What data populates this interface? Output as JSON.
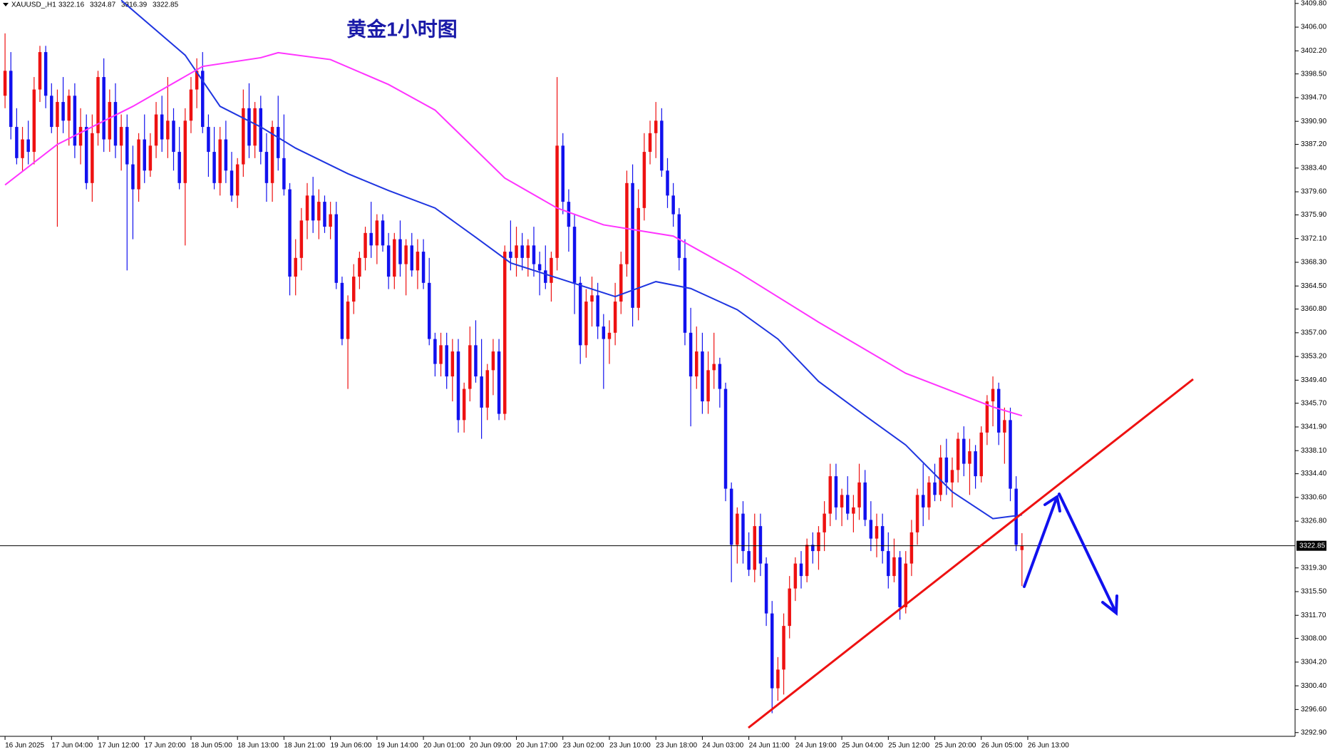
{
  "header": {
    "symbol": "XAUUSD_,H1",
    "values": [
      "3322.16",
      "3324.87",
      "3316.39",
      "3322.85"
    ]
  },
  "chart_data": {
    "type": "candlestick",
    "title": "黄金1小时图",
    "up_color": "#ee1111",
    "down_color": "#1111ee",
    "xlim": [
      -0.5,
      222
    ],
    "ylim": [
      3292.3,
      3410.35
    ],
    "xticks": [
      {
        "value": 0,
        "label": "16 Jun 2025"
      },
      {
        "value": 8,
        "label": "17 Jun 04:00"
      },
      {
        "value": 16,
        "label": "17 Jun 12:00"
      },
      {
        "value": 24,
        "label": "17 Jun 20:00"
      },
      {
        "value": 32,
        "label": "18 Jun 05:00"
      },
      {
        "value": 40,
        "label": "18 Jun 13:00"
      },
      {
        "value": 48,
        "label": "18 Jun 21:00"
      },
      {
        "value": 56,
        "label": "19 Jun 06:00"
      },
      {
        "value": 64,
        "label": "19 Jun 14:00"
      },
      {
        "value": 72,
        "label": "20 Jun 01:00"
      },
      {
        "value": 80,
        "label": "20 Jun 09:00"
      },
      {
        "value": 88,
        "label": "20 Jun 17:00"
      },
      {
        "value": 96,
        "label": "23 Jun 02:00"
      },
      {
        "value": 104,
        "label": "23 Jun 10:00"
      },
      {
        "value": 112,
        "label": "23 Jun 18:00"
      },
      {
        "value": 120,
        "label": "24 Jun 03:00"
      },
      {
        "value": 128,
        "label": "24 Jun 11:00"
      },
      {
        "value": 136,
        "label": "24 Jun 19:00"
      },
      {
        "value": 144,
        "label": "25 Jun 04:00"
      },
      {
        "value": 152,
        "label": "25 Jun 12:00"
      },
      {
        "value": 160,
        "label": "25 Jun 20:00"
      },
      {
        "value": 168,
        "label": "26 Jun 05:00"
      },
      {
        "value": 176,
        "label": "26 Jun 13:00"
      }
    ],
    "yticks": [
      {
        "value": 3409.8,
        "label": "3409.80"
      },
      {
        "value": 3406,
        "label": "3406.00"
      },
      {
        "value": 3402.2,
        "label": "3402.20"
      },
      {
        "value": 3398.5,
        "label": "3398.50"
      },
      {
        "value": 3394.7,
        "label": "3394.70"
      },
      {
        "value": 3390.9,
        "label": "3390.90"
      },
      {
        "value": 3387.2,
        "label": "3387.20"
      },
      {
        "value": 3383.4,
        "label": "3383.40"
      },
      {
        "value": 3379.6,
        "label": "3379.60"
      },
      {
        "value": 3375.9,
        "label": "3375.90"
      },
      {
        "value": 3372.1,
        "label": "3372.10"
      },
      {
        "value": 3368.3,
        "label": "3368.30"
      },
      {
        "value": 3364.5,
        "label": "3364.50"
      },
      {
        "value": 3360.8,
        "label": "3360.80"
      },
      {
        "value": 3357,
        "label": "3357.00"
      },
      {
        "value": 3353.2,
        "label": "3353.20"
      },
      {
        "value": 3349.4,
        "label": "3349.40"
      },
      {
        "value": 3345.7,
        "label": "3345.70"
      },
      {
        "value": 3341.9,
        "label": "3341.90"
      },
      {
        "value": 3338.1,
        "label": "3338.10"
      },
      {
        "value": 3334.4,
        "label": "3334.40"
      },
      {
        "value": 3330.6,
        "label": "3330.60"
      },
      {
        "value": 3326.8,
        "label": "3326.80"
      },
      {
        "value": 3319.3,
        "label": "3319.30"
      },
      {
        "value": 3315.5,
        "label": "3315.50"
      },
      {
        "value": 3311.7,
        "label": "3311.70"
      },
      {
        "value": 3308,
        "label": "3308.00"
      },
      {
        "value": 3304.2,
        "label": "3304.20"
      },
      {
        "value": 3300.4,
        "label": "3300.40"
      },
      {
        "value": 3296.6,
        "label": "3296.60"
      },
      {
        "value": 3292.9,
        "label": "3292.90"
      }
    ],
    "current_price": {
      "value": 3322.85,
      "label": "3322.85"
    },
    "ohlc": [
      [
        3395,
        3405,
        3393,
        3399
      ],
      [
        3399,
        3402,
        3388,
        3390
      ],
      [
        3390,
        3393,
        3384,
        3385
      ],
      [
        3385,
        3390,
        3383,
        3388
      ],
      [
        3388,
        3391,
        3384,
        3386
      ],
      [
        3386,
        3398,
        3384,
        3396
      ],
      [
        3396,
        3403,
        3394,
        3402
      ],
      [
        3402,
        3403,
        3393,
        3395
      ],
      [
        3395,
        3397,
        3389,
        3390
      ],
      [
        3390,
        3396,
        3374,
        3394
      ],
      [
        3394,
        3398,
        3389,
        3391
      ],
      [
        3391,
        3396,
        3387,
        3395
      ],
      [
        3395,
        3397,
        3385,
        3387
      ],
      [
        3387,
        3393,
        3384,
        3390
      ],
      [
        3390,
        3392,
        3380,
        3381
      ],
      [
        3381,
        3392,
        3378,
        3389
      ],
      [
        3389,
        3399,
        3387,
        3398
      ],
      [
        3398,
        3401,
        3386,
        3388
      ],
      [
        3388,
        3396,
        3386,
        3394
      ],
      [
        3394,
        3397,
        3385,
        3387
      ],
      [
        3387,
        3392,
        3383,
        3390
      ],
      [
        3390,
        3392,
        3367,
        3384
      ],
      [
        3384,
        3387,
        3372,
        3380
      ],
      [
        3380,
        3389,
        3378,
        3388
      ],
      [
        3388,
        3392,
        3381,
        3383
      ],
      [
        3383,
        3389,
        3382,
        3387
      ],
      [
        3387,
        3394,
        3385,
        3392
      ],
      [
        3392,
        3395,
        3386,
        3388
      ],
      [
        3388,
        3398,
        3385,
        3391
      ],
      [
        3391,
        3393,
        3383,
        3386
      ],
      [
        3386,
        3390,
        3380,
        3381
      ],
      [
        3381,
        3393,
        3371,
        3391
      ],
      [
        3391,
        3398,
        3389,
        3396
      ],
      [
        3396,
        3401,
        3393,
        3399
      ],
      [
        3399,
        3402,
        3389,
        3390
      ],
      [
        3390,
        3392,
        3382,
        3386
      ],
      [
        3386,
        3390,
        3380,
        3381
      ],
      [
        3381,
        3390,
        3379,
        3388
      ],
      [
        3388,
        3391,
        3381,
        3383
      ],
      [
        3383,
        3386,
        3378,
        3379
      ],
      [
        3379,
        3385,
        3377,
        3384
      ],
      [
        3384,
        3396,
        3382,
        3393
      ],
      [
        3393,
        3397,
        3385,
        3387
      ],
      [
        3387,
        3394,
        3385,
        3393
      ],
      [
        3393,
        3395,
        3384,
        3386
      ],
      [
        3386,
        3389,
        3378,
        3381
      ],
      [
        3381,
        3391,
        3378,
        3390
      ],
      [
        3390,
        3395,
        3383,
        3385
      ],
      [
        3385,
        3392,
        3379,
        3380
      ],
      [
        3380,
        3381,
        3363,
        3366
      ],
      [
        3366,
        3372,
        3363,
        3369
      ],
      [
        3369,
        3377,
        3367,
        3375
      ],
      [
        3375,
        3381,
        3372,
        3379
      ],
      [
        3379,
        3382,
        3373,
        3375
      ],
      [
        3375,
        3380,
        3372,
        3378
      ],
      [
        3378,
        3379,
        3373,
        3374
      ],
      [
        3374,
        3378,
        3372,
        3376
      ],
      [
        3376,
        3378,
        3364,
        3365
      ],
      [
        3365,
        3366,
        3355,
        3356
      ],
      [
        3356,
        3363,
        3348,
        3362
      ],
      [
        3362,
        3368,
        3360,
        3366
      ],
      [
        3366,
        3370,
        3364,
        3369
      ],
      [
        3369,
        3374,
        3367,
        3373
      ],
      [
        3373,
        3378,
        3369,
        3371
      ],
      [
        3371,
        3376,
        3368,
        3375
      ],
      [
        3375,
        3376,
        3370,
        3371
      ],
      [
        3371,
        3373,
        3364,
        3366
      ],
      [
        3366,
        3373,
        3364,
        3372
      ],
      [
        3372,
        3375,
        3366,
        3368
      ],
      [
        3368,
        3372,
        3363,
        3371
      ],
      [
        3371,
        3373,
        3366,
        3367
      ],
      [
        3367,
        3372,
        3364,
        3370
      ],
      [
        3370,
        3372,
        3364,
        3365
      ],
      [
        3365,
        3369,
        3355,
        3356
      ],
      [
        3356,
        3357,
        3350,
        3352
      ],
      [
        3352,
        3357,
        3350,
        3355
      ],
      [
        3355,
        3357,
        3348,
        3350
      ],
      [
        3350,
        3356,
        3346,
        3354
      ],
      [
        3354,
        3356,
        3341,
        3343
      ],
      [
        3343,
        3349,
        3341,
        3348
      ],
      [
        3348,
        3358,
        3346,
        3355
      ],
      [
        3355,
        3359,
        3349,
        3350
      ],
      [
        3350,
        3356,
        3340,
        3345
      ],
      [
        3345,
        3352,
        3343,
        3351
      ],
      [
        3351,
        3356,
        3347,
        3354
      ],
      [
        3354,
        3356,
        3343,
        3344
      ],
      [
        3344,
        3371,
        3343,
        3370
      ],
      [
        3370,
        3375,
        3367,
        3369
      ],
      [
        3369,
        3374,
        3366,
        3371
      ],
      [
        3371,
        3373,
        3367,
        3369
      ],
      [
        3369,
        3372,
        3366,
        3371
      ],
      [
        3371,
        3374,
        3366,
        3368
      ],
      [
        3368,
        3370,
        3363,
        3367
      ],
      [
        3367,
        3371,
        3364,
        3365
      ],
      [
        3365,
        3370,
        3362,
        3369
      ],
      [
        3369,
        3398,
        3367,
        3387
      ],
      [
        3387,
        3389,
        3376,
        3378
      ],
      [
        3378,
        3380,
        3370,
        3374
      ],
      [
        3374,
        3376,
        3360,
        3365
      ],
      [
        3365,
        3366,
        3352,
        3355
      ],
      [
        3355,
        3364,
        3353,
        3362
      ],
      [
        3362,
        3366,
        3358,
        3363
      ],
      [
        3363,
        3365,
        3356,
        3358
      ],
      [
        3358,
        3360,
        3348,
        3356
      ],
      [
        3356,
        3359,
        3352,
        3357
      ],
      [
        3357,
        3365,
        3355,
        3362
      ],
      [
        3362,
        3370,
        3360,
        3368
      ],
      [
        3368,
        3383,
        3366,
        3381
      ],
      [
        3381,
        3384,
        3358,
        3361
      ],
      [
        3361,
        3380,
        3359,
        3377
      ],
      [
        3377,
        3389,
        3375,
        3386
      ],
      [
        3386,
        3391,
        3384,
        3389
      ],
      [
        3389,
        3394,
        3385,
        3391
      ],
      [
        3391,
        3393,
        3382,
        3383
      ],
      [
        3383,
        3385,
        3377,
        3379
      ],
      [
        3379,
        3381,
        3374,
        3376
      ],
      [
        3376,
        3377,
        3367,
        3369
      ],
      [
        3369,
        3372,
        3355,
        3357
      ],
      [
        3357,
        3361,
        3342,
        3350
      ],
      [
        3350,
        3358,
        3348,
        3354
      ],
      [
        3354,
        3357,
        3344,
        3346
      ],
      [
        3346,
        3354,
        3344,
        3351
      ],
      [
        3351,
        3357,
        3348,
        3352
      ],
      [
        3352,
        3353,
        3345,
        3348
      ],
      [
        3348,
        3349,
        3330,
        3332
      ],
      [
        3332,
        3333,
        3317,
        3323
      ],
      [
        3323,
        3329,
        3320,
        3328
      ],
      [
        3328,
        3330,
        3320,
        3322
      ],
      [
        3322,
        3325,
        3318,
        3319
      ],
      [
        3319,
        3328,
        3317,
        3326
      ],
      [
        3326,
        3328,
        3318,
        3320
      ],
      [
        3320,
        3321,
        3310,
        3312
      ],
      [
        3312,
        3314,
        3296,
        3300
      ],
      [
        3300,
        3305,
        3298,
        3303
      ],
      [
        3303,
        3312,
        3299,
        3310
      ],
      [
        3310,
        3318,
        3308,
        3316
      ],
      [
        3316,
        3321,
        3314,
        3320
      ],
      [
        3320,
        3322,
        3316,
        3318
      ],
      [
        3318,
        3324,
        3317,
        3323
      ],
      [
        3323,
        3325,
        3320,
        3322
      ],
      [
        3322,
        3326,
        3319,
        3325
      ],
      [
        3325,
        3330,
        3322,
        3328
      ],
      [
        3328,
        3336,
        3326,
        3334
      ],
      [
        3334,
        3336,
        3327,
        3329
      ],
      [
        3329,
        3332,
        3326,
        3331
      ],
      [
        3331,
        3334,
        3327,
        3328
      ],
      [
        3328,
        3331,
        3325,
        3329
      ],
      [
        3329,
        3336,
        3327,
        3333
      ],
      [
        3333,
        3335,
        3326,
        3327
      ],
      [
        3327,
        3330,
        3322,
        3324
      ],
      [
        3324,
        3328,
        3321,
        3326
      ],
      [
        3326,
        3328,
        3320,
        3322
      ],
      [
        3322,
        3325,
        3316,
        3318
      ],
      [
        3318,
        3324,
        3317,
        3321
      ],
      [
        3321,
        3322,
        3311,
        3313
      ],
      [
        3313,
        3322,
        3312,
        3320
      ],
      [
        3320,
        3327,
        3318,
        3325
      ],
      [
        3325,
        3332,
        3323,
        3331
      ],
      [
        3331,
        3336,
        3326,
        3329
      ],
      [
        3329,
        3334,
        3327,
        3333
      ],
      [
        3333,
        3336,
        3330,
        3331
      ],
      [
        3331,
        3339,
        3330,
        3337
      ],
      [
        3337,
        3340,
        3331,
        3333
      ],
      [
        3333,
        3337,
        3329,
        3335
      ],
      [
        3335,
        3341,
        3333,
        3340
      ],
      [
        3340,
        3342,
        3334,
        3336
      ],
      [
        3336,
        3340,
        3331,
        3338
      ],
      [
        3338,
        3339,
        3332,
        3334
      ],
      [
        3334,
        3342,
        3333,
        3341
      ],
      [
        3341,
        3347,
        3339,
        3346
      ],
      [
        3346,
        3350,
        3342,
        3348
      ],
      [
        3348,
        3349,
        3339,
        3341
      ],
      [
        3341,
        3345,
        3336,
        3343
      ],
      [
        3343,
        3345,
        3330,
        3332
      ],
      [
        3332,
        3334,
        3322,
        3323
      ],
      [
        3322.16,
        3324.87,
        3316.39,
        3322.85
      ]
    ],
    "series": [
      {
        "color": "#1f35e0",
        "x": [
          20,
          31,
          37,
          44,
          50,
          59,
          66,
          74,
          81,
          87,
          96,
          105,
          112,
          118,
          126,
          133,
          140,
          148,
          155,
          163,
          170,
          175
        ],
        "values": [
          3410.3,
          3401.5,
          3393.3,
          3390,
          3386.6,
          3382.5,
          3379.8,
          3377,
          3372.3,
          3368.2,
          3365.5,
          3362.8,
          3365.2,
          3364.1,
          3360.7,
          3356,
          3349.2,
          3343.7,
          3339,
          3331.5,
          3327.2,
          3327.8
        ]
      },
      {
        "color": "#ff33ff",
        "x": [
          0,
          9,
          22,
          34,
          44,
          47,
          56,
          66,
          74,
          86,
          95,
          103,
          115,
          126,
          140,
          155,
          170,
          175
        ],
        "values": [
          3380.7,
          3387.2,
          3393.3,
          3399.7,
          3401.1,
          3401.9,
          3400.8,
          3396.8,
          3392.7,
          3381.8,
          3377,
          3374.3,
          3372.5,
          3366.8,
          3358.7,
          3350.5,
          3345.1,
          3343.7
        ]
      }
    ]
  }
}
